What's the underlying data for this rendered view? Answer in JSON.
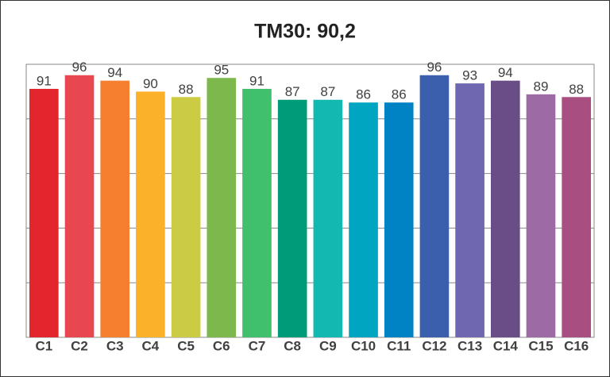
{
  "chart_data": {
    "type": "bar",
    "title": "TM30: 90,2",
    "categories": [
      "C1",
      "C2",
      "C3",
      "C4",
      "C5",
      "C6",
      "C7",
      "C8",
      "C9",
      "C10",
      "C11",
      "C12",
      "C13",
      "C14",
      "C15",
      "C16"
    ],
    "values": [
      91,
      96,
      94,
      90,
      88,
      95,
      91,
      87,
      87,
      86,
      86,
      96,
      93,
      94,
      89,
      88
    ],
    "colors": [
      "#e3262e",
      "#e8474f",
      "#f57f2f",
      "#fbb12a",
      "#cccb44",
      "#7cb84c",
      "#40c06c",
      "#009c7a",
      "#13b9b0",
      "#00a5c2",
      "#0083c4",
      "#3c5fad",
      "#6f67b0",
      "#6a4c87",
      "#9e6aa6",
      "#a84e80"
    ],
    "ylim": [
      0,
      100
    ],
    "yticks": [
      0,
      20,
      40,
      60,
      80,
      100
    ],
    "grid": true,
    "show_ytick_labels": false
  }
}
